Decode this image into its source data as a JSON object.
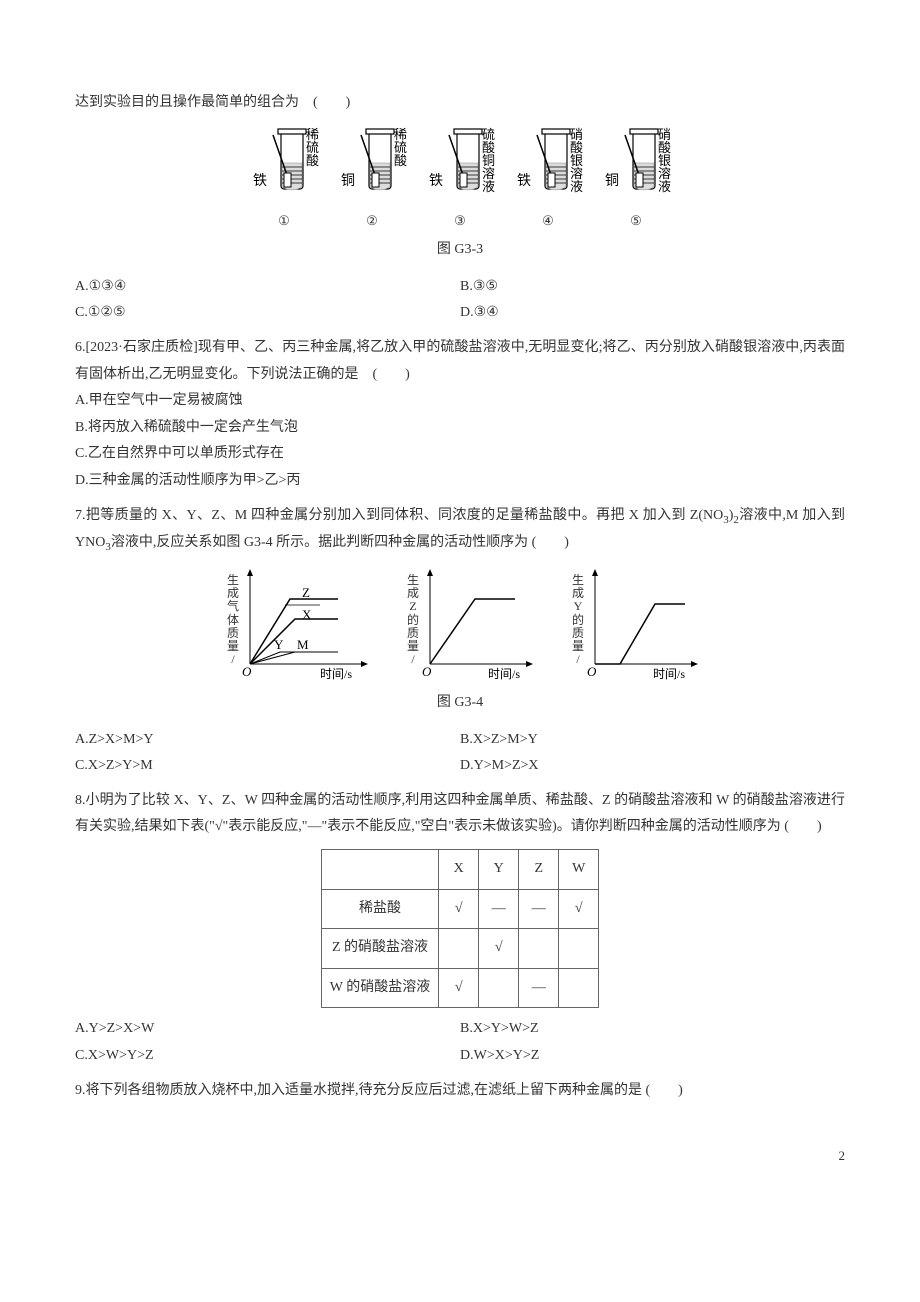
{
  "q5": {
    "prefix": "达到实验目的且操作最简单的组合为　(　　)",
    "tubes": [
      {
        "metal": "铁",
        "solution": "稀硫酸",
        "num": "①"
      },
      {
        "metal": "铜",
        "solution": "稀硫酸",
        "num": "②"
      },
      {
        "metal": "铁",
        "solution": "硫酸铜溶液",
        "num": "③"
      },
      {
        "metal": "铁",
        "solution": "硝酸银溶液",
        "num": "④"
      },
      {
        "metal": "铜",
        "solution": "硝酸银溶液",
        "num": "⑤"
      }
    ],
    "fig": "图 G3-3",
    "opts": {
      "A": "A.①③④",
      "B": "B.③⑤",
      "C": "C.①②⑤",
      "D": "D.③④"
    }
  },
  "q6": {
    "stem": "6.[2023·石家庄质检]现有甲、乙、丙三种金属,将乙放入甲的硫酸盐溶液中,无明显变化;将乙、丙分别放入硝酸银溶液中,丙表面有固体析出,乙无明显变化。下列说法正确的是　(　　)",
    "A": "A.甲在空气中一定易被腐蚀",
    "B": "B.将丙放入稀硫酸中一定会产生气泡",
    "C": "C.乙在自然界中可以单质形式存在",
    "D": "D.三种金属的活动性顺序为甲>乙>丙"
  },
  "q7": {
    "stem1": "7.把等质量的 X、Y、Z、M 四种金属分别加入到同体积、同浓度的足量稀盐酸中。再把 X 加入到 Z(NO",
    "stem_sub": "3",
    "stem1b": ")",
    "stem_sub2": "2",
    "stem2": "溶液中,M 加入到 YNO",
    "stem_sub3": "3",
    "stem3": "溶液中,反应关系如图 G3-4 所示。据此判断四种金属的活动性顺序为 (　　)",
    "fig": "图 G3-4",
    "chart1": {
      "ylabel": "生成气体质量/g",
      "xlabel": "时间/s",
      "seriesTop": "Z",
      "seriesMid": "X",
      "seriesLow1": "Y",
      "seriesLow2": "M",
      "origin": "O",
      "colors": {
        "axis": "#000",
        "line": "#000"
      }
    },
    "chart2": {
      "ylabel": "生成Z的质量/g",
      "xlabel": "时间/s",
      "origin": "O"
    },
    "chart3": {
      "ylabel": "生成Y的质量/g",
      "xlabel": "时间/s",
      "origin": "O"
    },
    "opts": {
      "A": "A.Z>X>M>Y",
      "B": "B.X>Z>M>Y",
      "C": "C.X>Z>Y>M",
      "D": "D.Y>M>Z>X"
    }
  },
  "q8": {
    "stem": "8.小明为了比较 X、Y、Z、W 四种金属的活动性顺序,利用这四种金属单质、稀盐酸、Z 的硝酸盐溶液和 W 的硝酸盐溶液进行有关实验,结果如下表(\"√\"表示能反应,\"—\"表示不能反应,\"空白\"表示未做该实验)。请你判断四种金属的活动性顺序为 (　　)",
    "table": {
      "head": [
        "",
        "X",
        "Y",
        "Z",
        "W"
      ],
      "rows": [
        {
          "label": "稀盐酸",
          "cells": [
            "√",
            "—",
            "—",
            "√"
          ]
        },
        {
          "label": "Z 的硝酸盐溶液",
          "cells": [
            "",
            "√",
            "",
            ""
          ]
        },
        {
          "label": "W 的硝酸盐溶液",
          "cells": [
            "√",
            "",
            "—",
            ""
          ]
        }
      ]
    },
    "opts": {
      "A": "A.Y>Z>X>W",
      "B": "B.X>Y>W>Z",
      "C": "C.X>W>Y>Z",
      "D": "D.W>X>Y>Z"
    }
  },
  "q9": {
    "stem": "9.将下列各组物质放入烧杯中,加入适量水搅拌,待充分反应后过滤,在滤纸上留下两种金属的是 (　　)"
  },
  "page": "2"
}
